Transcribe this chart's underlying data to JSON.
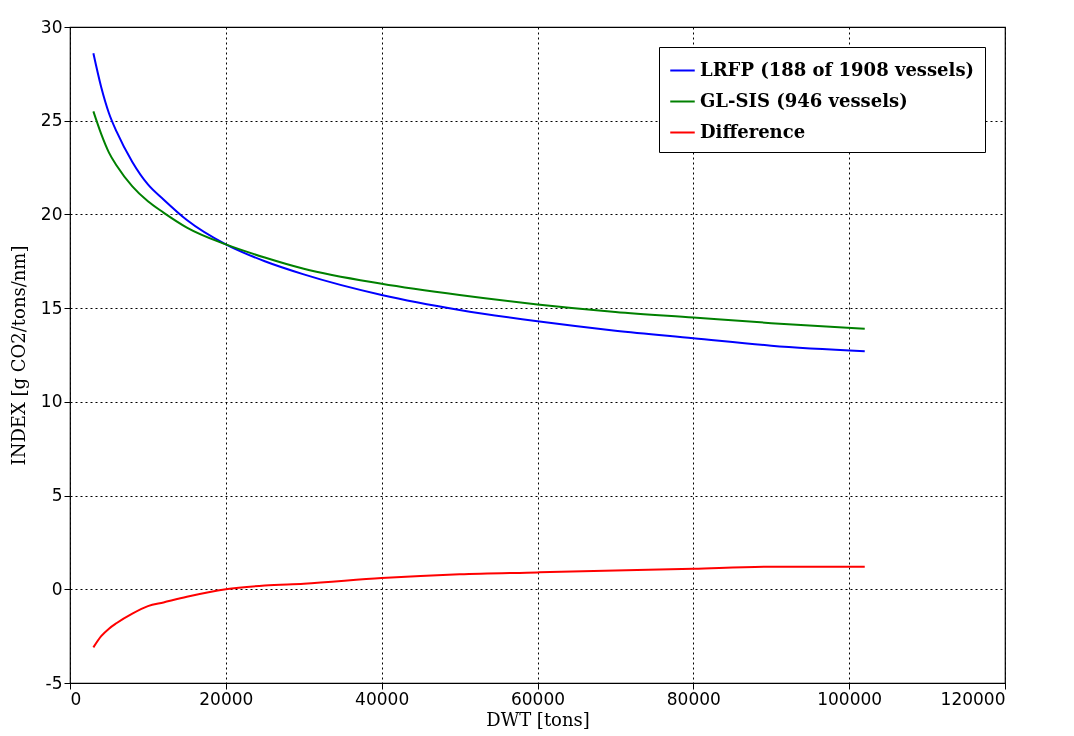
{
  "chart_data": {
    "type": "line",
    "xlabel": "DWT [tons]",
    "ylabel": "INDEX [g CO2/tons/nm]",
    "xlim": [
      0,
      120000
    ],
    "xticks": [
      0,
      20000,
      40000,
      60000,
      80000,
      100000,
      120000
    ],
    "ylim": [
      -5,
      30
    ],
    "yticks": [
      -5,
      0,
      5,
      10,
      15,
      20,
      25,
      30
    ],
    "grid": true,
    "legend": "top right",
    "x": [
      3000,
      4000,
      5000,
      6000,
      8000,
      10000,
      12000,
      15000,
      20000,
      25000,
      30000,
      40000,
      50000,
      60000,
      70000,
      80000,
      90000,
      102000
    ],
    "series": [
      {
        "name": "LRFP (188 of 1908 vessels)",
        "color": "#0000ff",
        "values": [
          28.6,
          26.8,
          25.4,
          24.4,
          22.8,
          21.6,
          20.8,
          19.7,
          18.4,
          17.5,
          16.8,
          15.7,
          14.9,
          14.3,
          13.8,
          13.4,
          13.0,
          12.7
        ]
      },
      {
        "name": "GL-SIS (946 vessels)",
        "color": "#008000",
        "values": [
          25.5,
          24.3,
          23.3,
          22.6,
          21.5,
          20.7,
          20.1,
          19.3,
          18.4,
          17.7,
          17.1,
          16.3,
          15.7,
          15.2,
          14.8,
          14.5,
          14.2,
          13.9
        ]
      },
      {
        "name": "Difference",
        "color": "#ff0000",
        "values": [
          -3.1,
          -2.5,
          -2.1,
          -1.8,
          -1.3,
          -0.9,
          -0.7,
          -0.4,
          0.0,
          0.2,
          0.3,
          0.6,
          0.8,
          0.9,
          1.0,
          1.1,
          1.2,
          1.2
        ]
      }
    ]
  }
}
